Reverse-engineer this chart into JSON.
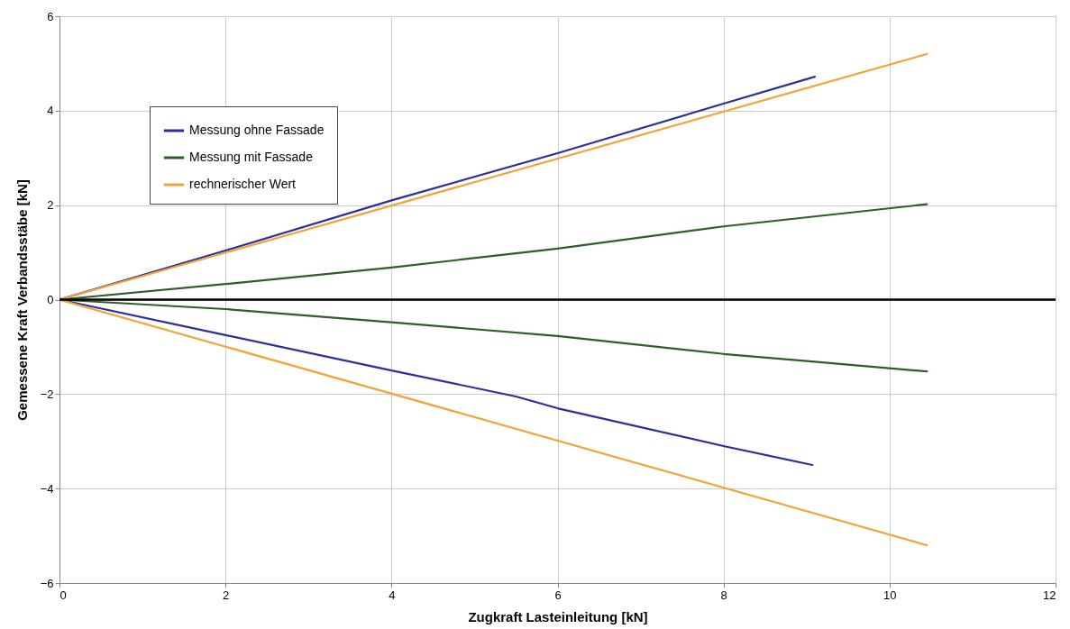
{
  "chart_data": {
    "type": "line",
    "xlabel": "Zugkraft Lasteinleitung [kN]",
    "ylabel": "Gemessene Kraft Verbandsstäbe [kN]",
    "xlim": [
      0,
      12
    ],
    "xticks": [
      0,
      2,
      4,
      6,
      8,
      10,
      12
    ],
    "ylim": [
      -6,
      6
    ],
    "yticks": [
      -6,
      -4,
      -2,
      0,
      2,
      4,
      6
    ],
    "grid": true,
    "legend": "top left",
    "line_style": "solid",
    "marker": "none",
    "ref_lines": [
      {
        "axis": "y",
        "value": 0,
        "color": "#000000"
      }
    ],
    "series": [
      {
        "name": "Messung ohne Fassade",
        "color": "#2b2f9c",
        "x": [
          0,
          2,
          4,
          6,
          8,
          9.1
        ],
        "values": [
          0,
          1.04,
          2.1,
          3.1,
          4.15,
          4.72
        ]
      },
      {
        "name": "Messung mit Fassade",
        "color": "#2f5e2a",
        "x": [
          0,
          2,
          4,
          6,
          8,
          10.45
        ],
        "values": [
          0,
          0.33,
          0.68,
          1.08,
          1.55,
          2.02
        ]
      },
      {
        "name": "rechnerischer Wert",
        "color": "#f0a43a",
        "x": [
          0,
          10.45
        ],
        "values": [
          0,
          5.2
        ]
      },
      {
        "color": "#2b2f9c",
        "x": [
          0,
          2,
          4,
          5.5,
          6,
          8,
          9.07
        ],
        "values": [
          0,
          -0.75,
          -1.5,
          -2.05,
          -2.3,
          -3.1,
          -3.5
        ]
      },
      {
        "color": "#2f5e2a",
        "x": [
          0,
          2,
          4,
          6,
          8,
          9,
          10.45
        ],
        "values": [
          0,
          -0.2,
          -0.48,
          -0.77,
          -1.15,
          -1.3,
          -1.52
        ]
      },
      {
        "color": "#f0a43a",
        "x": [
          0,
          10.45
        ],
        "values": [
          0,
          -5.2
        ]
      }
    ]
  }
}
